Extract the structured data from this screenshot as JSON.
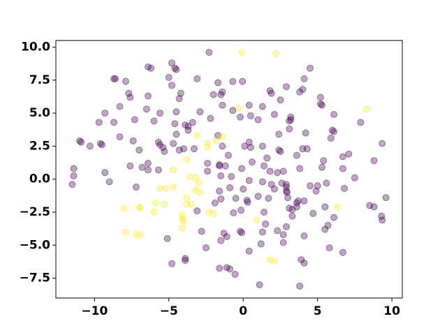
{
  "chart_data": {
    "type": "scatter",
    "xlim": [
      -12.6,
      10.7
    ],
    "ylim": [
      -9.0,
      10.5
    ],
    "xticks": [
      {
        "value": -10,
        "label": "−10"
      },
      {
        "value": -5,
        "label": "−5"
      },
      0,
      5,
      10
    ],
    "yticks": [
      {
        "value": -7.5,
        "label": "−7.5"
      },
      {
        "value": -5,
        "label": "−5.0"
      },
      {
        "value": -2.5,
        "label": "−2.5"
      },
      {
        "value": 0,
        "label": "0.0"
      },
      {
        "value": 2.5,
        "label": "2.5"
      },
      {
        "value": 5,
        "label": "5.0"
      },
      {
        "value": 7.5,
        "label": "7.5"
      },
      {
        "value": 10,
        "label": "10.0"
      }
    ],
    "alpha": 0.35,
    "series": [
      {
        "color": "#440154",
        "x": [
          -2.3,
          -4.8,
          -4.6,
          -4.5,
          -8.7,
          -8.6,
          -7.9,
          -6.4,
          -6.2,
          -5.0,
          -1.7,
          -0.7,
          -0.05,
          4.1,
          4.5,
          -7.7,
          -7.6,
          -6.4,
          -4.8,
          -4.2,
          -4.3,
          -3.1,
          -1.4,
          -1.5,
          -2.0,
          1.8,
          1.9,
          2.9,
          3.8,
          4.0,
          5.2,
          -8.3,
          -9.3,
          -6.5,
          -5.6,
          -4.5,
          -2.9,
          -1.4,
          -0.7,
          0.4,
          0.5,
          1.3,
          2.5,
          3.2,
          5.2,
          5.3,
          6.1,
          -9.7,
          -8.7,
          -7.3,
          -6.0,
          -4.6,
          -3.9,
          -3.4,
          -2.2,
          -0.2,
          1.0,
          2.1,
          3.1,
          3.2,
          6.0,
          6.1,
          5.9,
          7.9,
          -11.0,
          -10.9,
          -9.6,
          -9.5,
          -8.3,
          -7.4,
          -7.0,
          -5.7,
          -5.6,
          -5.4,
          -4.7,
          -4.5,
          -3.7,
          -3.7,
          -4.0,
          -4.3,
          -1.7,
          -1.4,
          0.1,
          0.4,
          0.5,
          1.3,
          2.4,
          2.4,
          2.5,
          3.1,
          4.2,
          4.0,
          4.3,
          -10.3,
          -11.4,
          -11.4,
          -9.3,
          -9.0,
          -11.5,
          -7.6,
          -6.8,
          -7.2,
          -6.4,
          -5.7,
          -5.3,
          -6.4,
          -3.3,
          -2.4,
          -2.4,
          -1.6,
          -1.6,
          -1.2,
          -1.0,
          -1.5,
          -0.8,
          -0.1,
          0.6,
          1.4,
          1.6,
          1.8,
          2.3,
          2.7,
          3.6,
          3.8,
          5.4,
          5.3,
          5.0,
          6.7,
          7.1,
          6.7,
          8.8,
          7.5,
          6.8,
          5.6,
          -1.6,
          -0.9,
          -0.5,
          0.0,
          0.4,
          1.0,
          1.3,
          1.7,
          1.9,
          2.1,
          2.6,
          2.9,
          2.9,
          2.9,
          2.95,
          3.0,
          3.3,
          3.1,
          3.6,
          3.6,
          3.7,
          4.1,
          4.5,
          4.9,
          4.7,
          5.5,
          6.1,
          5.7,
          5.5,
          8.5,
          8.8,
          9.3,
          9.35,
          9.6,
          9.35,
          -1.5,
          -1.9,
          -3.1,
          -0.65,
          -0.15,
          0.3,
          0.25,
          1.4,
          1.5,
          2.3,
          2.9,
          2.7,
          1.3,
          3.3,
          4.1,
          -0.2,
          -0.1,
          -2.8,
          -1.3,
          -1.5,
          -2.5,
          -5.1,
          0.4,
          1.2,
          2.7,
          5.8,
          6.7,
          -4.8,
          -3.9,
          -3.9,
          -1.6,
          -1.1,
          -0.9,
          -0.55,
          1.1,
          3.8,
          3.9,
          4.1,
          -1.1
        ],
        "values": [
          9.6,
          8.8,
          8.4,
          8.3,
          7.6,
          7.6,
          7.4,
          8.5,
          8.4,
          7.7,
          7.3,
          7.4,
          7.4,
          7.6,
          8.4,
          6.5,
          6.2,
          6.3,
          7.1,
          6.5,
          6.1,
          7.6,
          6.6,
          6.4,
          6.4,
          6.7,
          6.5,
          7.0,
          6.6,
          6.8,
          6.2,
          5.5,
          5.0,
          5.3,
          5.0,
          5.1,
          5.1,
          5.6,
          5.2,
          5.6,
          4.8,
          5.5,
          6.0,
          4.7,
          5.7,
          5.6,
          4.9,
          4.3,
          4.3,
          4.5,
          4.4,
          4.2,
          4.1,
          4.3,
          4.6,
          4.7,
          4.5,
          4.9,
          4.4,
          4.5,
          3.7,
          3.6,
          3.1,
          4.3,
          2.9,
          2.8,
          2.7,
          2.6,
          3.2,
          2.9,
          2.2,
          2.8,
          2.6,
          2.4,
          2.7,
          3.4,
          3.7,
          4.0,
          2.3,
          2.2,
          3.3,
          2.5,
          2.5,
          2.8,
          2.4,
          2.5,
          3.4,
          2.2,
          2.1,
          3.8,
          3.5,
          2.3,
          2.3,
          2.5,
          0.8,
          0.25,
          0.5,
          -0.2,
          -0.4,
          1.0,
          0.9,
          -0.6,
          1.2,
          0.7,
          2.1,
          0.7,
          2.3,
          1.2,
          0.6,
          1.1,
          1.0,
          1.0,
          1.8,
          0.25,
          0.2,
          0.8,
          1.3,
          1.0,
          1.6,
          0.6,
          0.5,
          0.6,
          1.8,
          0.8,
          1.4,
          0.9,
          -0.5,
          1.7,
          1.9,
          0.8,
          1.4,
          0.1,
          -0.7,
          -0.3,
          -0.9,
          -0.65,
          -1.45,
          -0.75,
          -0.1,
          -1.3,
          -0.2,
          -1.45,
          -0.4,
          -0.75,
          -0.3,
          -0.4,
          -0.6,
          -0.9,
          -1.0,
          -1.4,
          -2.3,
          -2.2,
          -1.8,
          -2.1,
          -1.65,
          -1.65,
          -0.5,
          -0.9,
          -2.6,
          -2.1,
          -2.9,
          -3.5,
          -3.8,
          -2.0,
          -2.1,
          -2.8,
          -3.1,
          -1.4,
          2.7,
          -1.5,
          -1.8,
          -2.4,
          -2.55,
          -2.35,
          -1.75,
          -1.6,
          -2.5,
          -3.4,
          -3.9,
          -3.6,
          -4.2,
          -4.0,
          -2.8,
          -4.3,
          -3.95,
          -4.05,
          -3.95,
          -4.1,
          -4.65,
          -5.2,
          -4.5,
          -5.45,
          -4.9,
          -4.8,
          -5.2,
          -5.55,
          -6.4,
          -6.0,
          -6.15,
          -6.75,
          -6.7,
          -6.8,
          -7.2,
          -8.0,
          -8.1,
          -6.1,
          -6.35,
          -4.35
        ]
      },
      {
        "color": "#fde725",
        "x": [
          -0.1,
          2.2,
          -0.3,
          8.3,
          -3.1,
          -1.4,
          -2.4,
          -1.8,
          -2.4,
          -3.8,
          -4.7,
          -3.6,
          -3.2,
          -3.0,
          -5.6,
          -5.2,
          -4.7,
          -3.2,
          -2.9,
          -3.8,
          -3.5,
          -3.8,
          -5.9,
          -5.3,
          -8.0,
          -7.0,
          -6.9,
          -6.0,
          -4.1,
          -2.3,
          -2.0,
          -4.1,
          -4.0,
          0.9,
          6.3,
          -4.1,
          -7.9,
          -7.2,
          -6.9,
          1.8,
          2.1
        ],
        "values": [
          9.6,
          9.5,
          5.4,
          5.3,
          3.3,
          3.2,
          2.7,
          2.9,
          2.4,
          1.5,
          0.7,
          0.2,
          0.1,
          -0.3,
          -0.7,
          -0.7,
          -0.6,
          -0.8,
          -1.0,
          -1.4,
          -1.9,
          -1.9,
          -1.8,
          -1.9,
          -2.2,
          -2.1,
          -2.2,
          -2.5,
          -2.7,
          -2.5,
          -2.6,
          -3.0,
          -3.2,
          -3.1,
          -2.1,
          -3.7,
          -4.0,
          -4.2,
          -4.2,
          -6.1,
          -6.2
        ]
      }
    ]
  }
}
